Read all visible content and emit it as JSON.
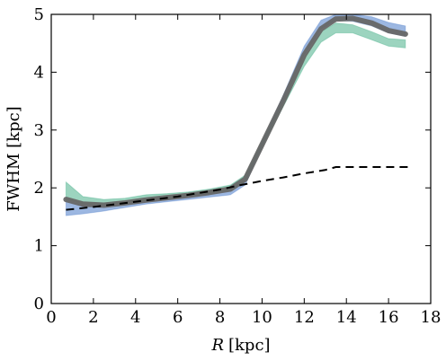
{
  "chart_data": {
    "type": "line",
    "title": "",
    "xlabel_symbol": "R",
    "xlabel_unit": "[kpc]",
    "ylabel": "FWHM [kpc]",
    "xlim": [
      0,
      18
    ],
    "ylim": [
      0,
      5
    ],
    "xticks": [
      "0",
      "2",
      "4",
      "6",
      "8",
      "10",
      "12",
      "14",
      "16",
      "18"
    ],
    "yticks": [
      "0",
      "1",
      "2",
      "3",
      "4",
      "5"
    ],
    "grid": false,
    "legend": "none",
    "colors": {
      "median": "#666666",
      "blue_band": "#4a7cc8",
      "green_band": "#3aaa80",
      "dashed": "#000000"
    },
    "x": [
      0.7,
      1.5,
      2.5,
      3.5,
      4.5,
      5.5,
      6.5,
      7.5,
      8.5,
      9.2,
      10.0,
      11.0,
      12.0,
      12.8,
      13.5,
      14.3,
      15.2,
      16.0,
      16.8
    ],
    "series": [
      {
        "role": "median",
        "values": [
          1.8,
          1.72,
          1.7,
          1.74,
          1.79,
          1.83,
          1.87,
          1.92,
          1.98,
          2.15,
          2.75,
          3.5,
          4.3,
          4.75,
          4.92,
          4.93,
          4.85,
          4.72,
          4.66
        ]
      },
      {
        "role": "blue-band",
        "upper": [
          1.78,
          1.7,
          1.68,
          1.72,
          1.77,
          1.81,
          1.85,
          1.9,
          1.96,
          2.15,
          2.8,
          3.6,
          4.45,
          4.9,
          5.0,
          5.0,
          4.96,
          4.86,
          4.8
        ],
        "lower": [
          1.52,
          1.55,
          1.6,
          1.66,
          1.72,
          1.76,
          1.8,
          1.84,
          1.88,
          2.05,
          2.7,
          3.5,
          4.3,
          4.75,
          4.9,
          4.88,
          4.8,
          4.68,
          4.62
        ]
      },
      {
        "role": "green-band",
        "upper": [
          2.1,
          1.85,
          1.8,
          1.82,
          1.88,
          1.9,
          1.93,
          1.98,
          2.05,
          2.22,
          2.82,
          3.5,
          4.25,
          4.7,
          4.85,
          4.82,
          4.7,
          4.58,
          4.56
        ],
        "lower": [
          1.8,
          1.72,
          1.7,
          1.74,
          1.78,
          1.82,
          1.86,
          1.9,
          1.96,
          2.12,
          2.7,
          3.4,
          4.1,
          4.52,
          4.68,
          4.68,
          4.56,
          4.45,
          4.42
        ]
      },
      {
        "role": "dashed",
        "x": [
          0.7,
          2,
          4,
          6,
          8,
          9,
          10,
          11,
          12,
          13,
          13.5,
          14,
          15,
          16,
          17
        ],
        "values": [
          1.62,
          1.67,
          1.76,
          1.85,
          1.97,
          2.05,
          2.12,
          2.18,
          2.25,
          2.31,
          2.36,
          2.36,
          2.36,
          2.36,
          2.36
        ]
      }
    ]
  }
}
